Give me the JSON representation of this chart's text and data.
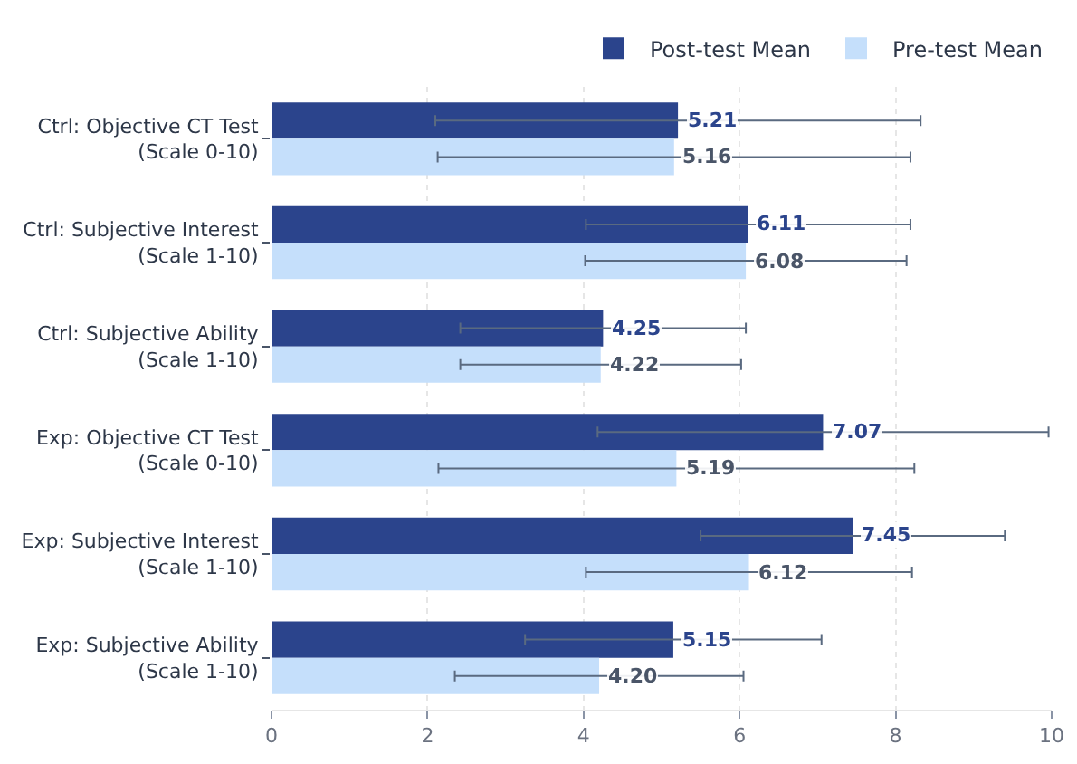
{
  "chart_data": {
    "type": "bar",
    "orientation": "horizontal",
    "categories": [
      "Ctrl: Objective CT Test\n(Scale 0-10)",
      "Ctrl: Subjective Interest\n(Scale 1-10)",
      "Ctrl: Subjective Ability\n(Scale 1-10)",
      "Exp: Objective CT Test\n(Scale 0-10)",
      "Exp: Subjective Interest\n(Scale 1-10)",
      "Exp: Subjective Ability\n(Scale 1-10)"
    ],
    "series": [
      {
        "name": "Post-test Mean",
        "color": "#2b448c",
        "values": [
          5.21,
          6.11,
          4.25,
          7.07,
          7.45,
          5.15
        ],
        "errors": [
          3.11,
          2.08,
          1.83,
          2.89,
          1.95,
          1.9
        ],
        "value_labels": [
          "5.21",
          "6.11",
          "4.25",
          "7.07",
          "7.45",
          "5.15"
        ]
      },
      {
        "name": "Pre-test Mean",
        "color": "#c5dffb",
        "values": [
          5.16,
          6.08,
          4.22,
          5.19,
          6.12,
          4.2
        ],
        "errors": [
          3.03,
          2.06,
          1.8,
          3.05,
          2.09,
          1.85
        ],
        "value_labels": [
          "5.16",
          "6.08",
          "4.22",
          "5.19",
          "6.12",
          "4.20"
        ]
      }
    ],
    "xlim": [
      0,
      10
    ],
    "xticks": [
      0,
      2,
      4,
      6,
      8,
      10
    ],
    "grid": "x",
    "legend": "top right"
  }
}
